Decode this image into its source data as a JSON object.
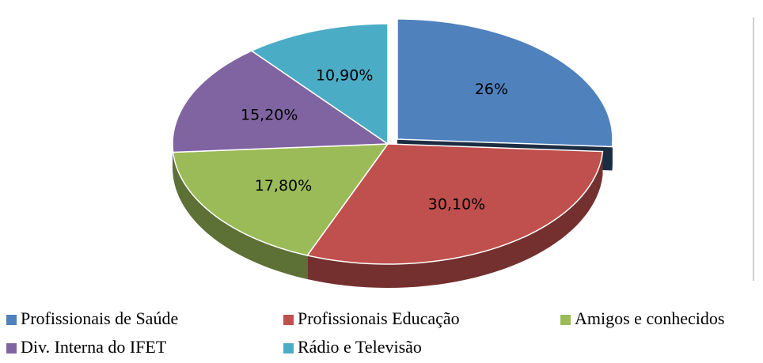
{
  "chart_data": {
    "type": "pie",
    "categories": [
      "Profissionais de Saúde",
      "Profissionais Educação",
      "Amigos e conhecidos",
      "Div. Interna do IFET",
      "Rádio e Televisão"
    ],
    "values": [
      26,
      30.1,
      17.8,
      15.2,
      10.9
    ],
    "value_labels": [
      "26%",
      "30,10%",
      "17,80%",
      "15,20%",
      "10,90%"
    ],
    "colors": [
      "#4f81bd",
      "#c0504d",
      "#9bbb59",
      "#8064a2",
      "#4bacc6"
    ],
    "legend": "bottom"
  }
}
